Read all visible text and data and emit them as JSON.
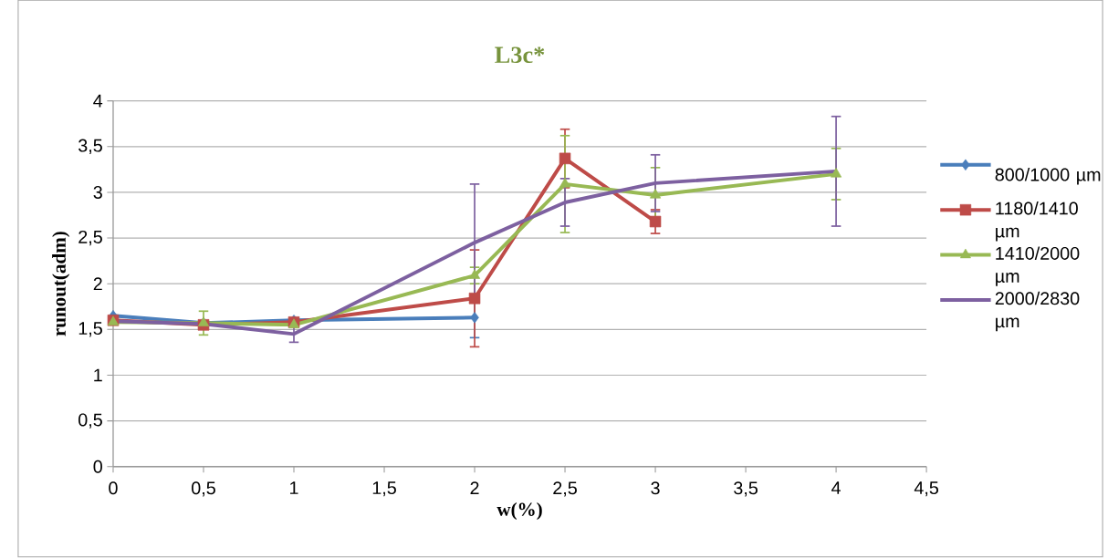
{
  "chart_data": {
    "type": "line",
    "title": "L3c*",
    "xlabel": "w(%)",
    "ylabel": "runout(adm)",
    "x": [
      0,
      0.5,
      1,
      2,
      2.5,
      3,
      4
    ],
    "series": [
      {
        "name": "800/1000 µm",
        "color": "#4a7ebb",
        "marker": "diamond",
        "values": [
          1.65,
          1.57,
          1.6,
          1.63,
          null,
          null,
          null
        ],
        "errors": [
          null,
          null,
          null,
          0.22,
          null,
          null,
          null
        ]
      },
      {
        "name": "1180/1410 µm",
        "color": "#be4b48",
        "marker": "square",
        "values": [
          1.6,
          1.55,
          1.58,
          1.84,
          3.37,
          2.68,
          null
        ],
        "errors": [
          null,
          null,
          null,
          0.53,
          0.32,
          0.13,
          null
        ]
      },
      {
        "name": "1410/2000 µm",
        "color": "#98b954",
        "marker": "triangle",
        "values": [
          1.58,
          1.57,
          1.55,
          2.09,
          3.09,
          2.97,
          3.2
        ],
        "errors": [
          null,
          0.13,
          null,
          0.09,
          0.53,
          0.3,
          0.28
        ]
      },
      {
        "name": "2000/2830 µm",
        "color": "#7d60a0",
        "marker": "none",
        "values": [
          1.59,
          1.56,
          1.45,
          2.45,
          2.89,
          3.1,
          3.23
        ],
        "errors": [
          null,
          null,
          0.09,
          0.64,
          0.26,
          0.31,
          0.6
        ]
      }
    ],
    "xlim": [
      0,
      4.5
    ],
    "ylim": [
      0,
      4
    ],
    "xticks": [
      0,
      {
        "value": 0.5,
        "label": "0,5"
      },
      1,
      {
        "value": 1.5,
        "label": "1,5"
      },
      2,
      {
        "value": 2.5,
        "label": "2,5"
      },
      3,
      {
        "value": 3.5,
        "label": "3,5"
      },
      4,
      {
        "value": 4.5,
        "label": "4,5"
      }
    ],
    "yticks": [
      0,
      {
        "value": 0.5,
        "label": "0,5"
      },
      1,
      {
        "value": 1.5,
        "label": "1,5"
      },
      2,
      {
        "value": 2.5,
        "label": "2,5"
      },
      3,
      {
        "value": 3.5,
        "label": "3,5"
      },
      4
    ],
    "grid": "y",
    "legend": "right",
    "line_style": "solid"
  }
}
